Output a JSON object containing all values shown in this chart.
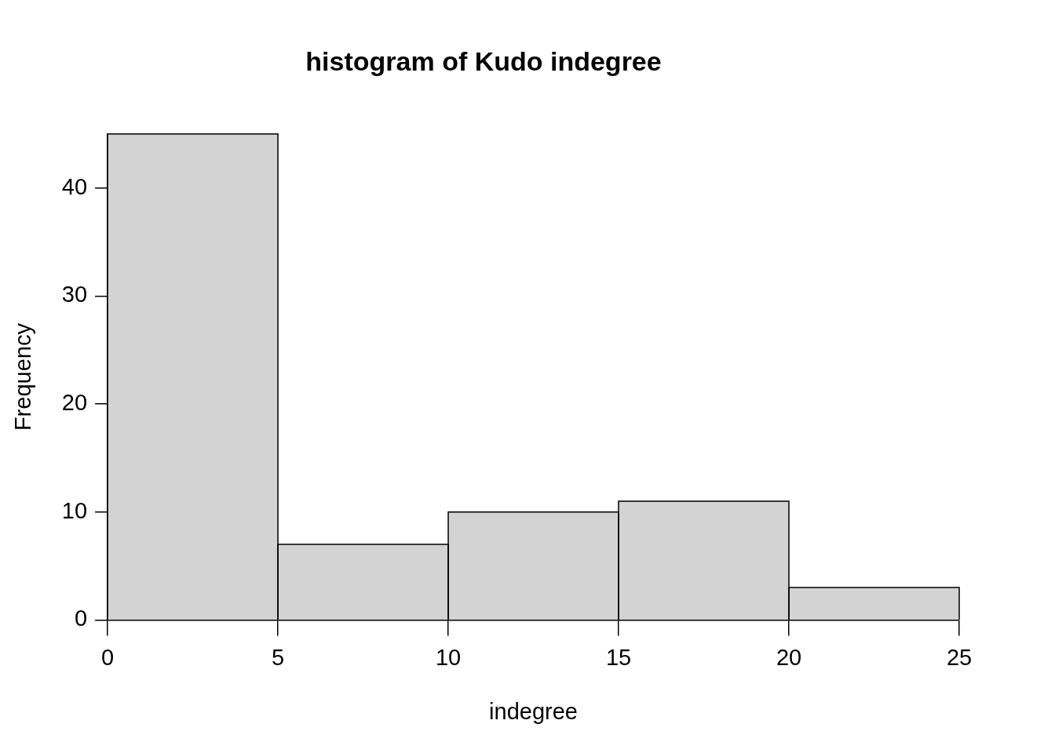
{
  "chart_data": {
    "type": "histogram",
    "title": "histogram of Kudo indegree",
    "xlabel": "indegree",
    "ylabel": "Frequency",
    "bins": [
      0,
      5,
      10,
      15,
      20,
      25
    ],
    "values": [
      45,
      7,
      10,
      11,
      3
    ],
    "color": "#d3d3d3",
    "xlim": [
      0,
      25
    ],
    "xticks": [
      0,
      5,
      10,
      15,
      20,
      25
    ],
    "ylim": [
      0,
      45
    ],
    "yticks": [
      0,
      10,
      20,
      30,
      40
    ],
    "grid": false,
    "legend": false
  }
}
